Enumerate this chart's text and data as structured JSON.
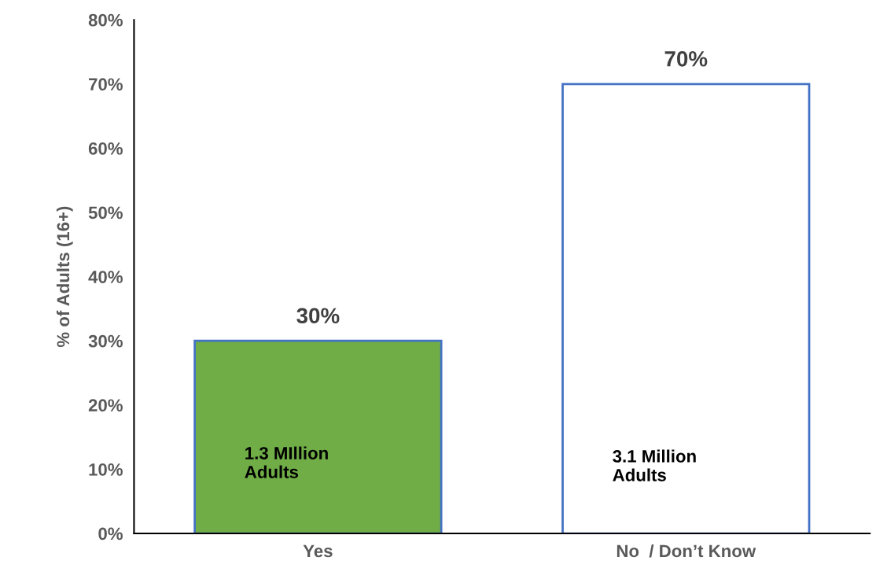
{
  "chart_data": {
    "type": "bar",
    "ylabel": "% of Adults (16+)",
    "categories": [
      "Yes",
      "No  / Don’t Know"
    ],
    "values": [
      30,
      70
    ],
    "colors": [
      "#70ad47",
      "#ffffff"
    ],
    "value_labels": [
      "30%",
      "70%"
    ],
    "ylim": [
      0,
      80
    ],
    "yticks": [
      {
        "value": 0,
        "label": "0%"
      },
      {
        "value": 10,
        "label": "10%"
      },
      {
        "value": 20,
        "label": "20%"
      },
      {
        "value": 30,
        "label": "30%"
      },
      {
        "value": 40,
        "label": "40%"
      },
      {
        "value": 50,
        "label": "50%"
      },
      {
        "value": 60,
        "label": "60%"
      },
      {
        "value": 70,
        "label": "70%"
      },
      {
        "value": 80,
        "label": "80%"
      }
    ],
    "annotations": [
      "1.3 MIllion\nAdults",
      "3.1 Million\nAdults"
    ],
    "grid": false,
    "legend": false
  }
}
